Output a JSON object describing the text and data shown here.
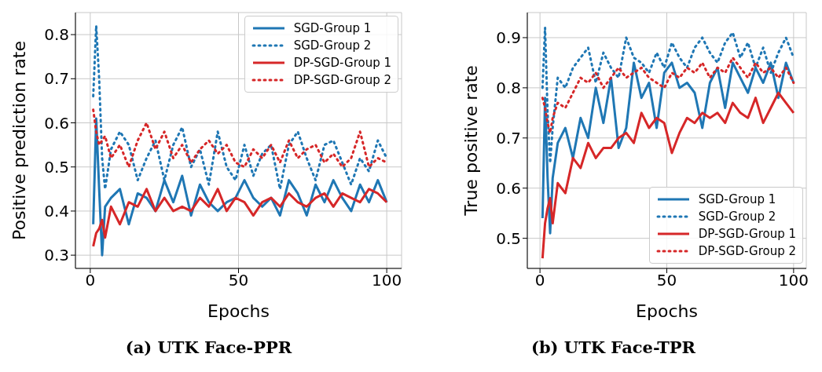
{
  "chart_data": [
    {
      "type": "line",
      "title": "(a) UTK Face-PPR",
      "xlabel": "Epochs",
      "ylabel": "Positive prediction rate",
      "xlim": [
        -5,
        105
      ],
      "xticks": [
        0,
        50,
        100
      ],
      "ylim": [
        0.27,
        0.85
      ],
      "yticks": [
        0.3,
        0.4,
        0.5,
        0.6,
        0.7,
        0.8
      ],
      "grid": true,
      "legend": "top right",
      "x": [
        1,
        2,
        3,
        4,
        5,
        7,
        10,
        13,
        16,
        19,
        22,
        25,
        28,
        31,
        34,
        37,
        40,
        43,
        46,
        49,
        52,
        55,
        58,
        61,
        64,
        67,
        70,
        73,
        76,
        79,
        82,
        85,
        88,
        91,
        94,
        97,
        100
      ],
      "series": [
        {
          "name": "SGD-Group 1",
          "color": "#1f77b4",
          "line_style": "solid",
          "values": [
            0.37,
            0.61,
            0.45,
            0.3,
            0.41,
            0.43,
            0.45,
            0.37,
            0.44,
            0.43,
            0.4,
            0.47,
            0.42,
            0.48,
            0.39,
            0.46,
            0.42,
            0.4,
            0.42,
            0.43,
            0.47,
            0.43,
            0.41,
            0.43,
            0.39,
            0.47,
            0.44,
            0.39,
            0.46,
            0.42,
            0.47,
            0.43,
            0.4,
            0.46,
            0.42,
            0.47,
            0.42
          ]
        },
        {
          "name": "SGD-Group 2",
          "color": "#1f77b4",
          "line_style": "dotted",
          "values": [
            0.66,
            0.82,
            0.7,
            0.52,
            0.45,
            0.54,
            0.58,
            0.55,
            0.47,
            0.52,
            0.56,
            0.47,
            0.55,
            0.59,
            0.5,
            0.54,
            0.46,
            0.58,
            0.5,
            0.47,
            0.55,
            0.48,
            0.53,
            0.55,
            0.45,
            0.55,
            0.58,
            0.52,
            0.47,
            0.55,
            0.56,
            0.51,
            0.46,
            0.52,
            0.49,
            0.56,
            0.52
          ]
        },
        {
          "name": "DP-SGD-Group 1",
          "color": "#d62728",
          "line_style": "solid",
          "values": [
            0.32,
            0.35,
            0.36,
            0.38,
            0.34,
            0.41,
            0.37,
            0.42,
            0.41,
            0.45,
            0.4,
            0.43,
            0.4,
            0.41,
            0.4,
            0.43,
            0.41,
            0.45,
            0.4,
            0.43,
            0.42,
            0.39,
            0.42,
            0.43,
            0.41,
            0.44,
            0.42,
            0.41,
            0.43,
            0.44,
            0.41,
            0.44,
            0.43,
            0.42,
            0.45,
            0.44,
            0.42
          ]
        },
        {
          "name": "DP-SGD-Group 2",
          "color": "#d62728",
          "line_style": "dotted",
          "values": [
            0.63,
            0.58,
            0.55,
            0.56,
            0.57,
            0.52,
            0.55,
            0.5,
            0.56,
            0.6,
            0.54,
            0.58,
            0.52,
            0.55,
            0.51,
            0.54,
            0.56,
            0.53,
            0.55,
            0.51,
            0.5,
            0.54,
            0.52,
            0.55,
            0.51,
            0.56,
            0.52,
            0.54,
            0.55,
            0.51,
            0.53,
            0.5,
            0.52,
            0.58,
            0.5,
            0.52,
            0.51
          ]
        }
      ]
    },
    {
      "type": "line",
      "title": "(b) UTK Face-TPR",
      "xlabel": "Epochs",
      "ylabel": "True positive rate",
      "xlim": [
        -5,
        105
      ],
      "xticks": [
        0,
        50,
        100
      ],
      "ylim": [
        0.44,
        0.95
      ],
      "yticks": [
        0.5,
        0.6,
        0.7,
        0.8,
        0.9
      ],
      "grid": true,
      "legend": "bottom right",
      "x": [
        1,
        2,
        3,
        4,
        5,
        7,
        10,
        13,
        16,
        19,
        22,
        25,
        28,
        31,
        34,
        37,
        40,
        43,
        46,
        49,
        52,
        55,
        58,
        61,
        64,
        67,
        70,
        73,
        76,
        79,
        82,
        85,
        88,
        91,
        94,
        97,
        100
      ],
      "series": [
        {
          "name": "SGD-Group 1",
          "color": "#1f77b4",
          "line_style": "solid",
          "values": [
            0.54,
            0.78,
            0.62,
            0.51,
            0.62,
            0.69,
            0.72,
            0.66,
            0.74,
            0.7,
            0.8,
            0.73,
            0.82,
            0.68,
            0.72,
            0.85,
            0.78,
            0.81,
            0.72,
            0.83,
            0.85,
            0.8,
            0.81,
            0.79,
            0.72,
            0.81,
            0.84,
            0.76,
            0.85,
            0.82,
            0.79,
            0.84,
            0.81,
            0.85,
            0.78,
            0.85,
            0.81
          ]
        },
        {
          "name": "SGD-Group 2",
          "color": "#1f77b4",
          "line_style": "dotted",
          "values": [
            0.8,
            0.92,
            0.75,
            0.65,
            0.72,
            0.82,
            0.8,
            0.84,
            0.86,
            0.88,
            0.81,
            0.87,
            0.84,
            0.82,
            0.9,
            0.86,
            0.85,
            0.83,
            0.87,
            0.84,
            0.89,
            0.86,
            0.84,
            0.88,
            0.9,
            0.87,
            0.85,
            0.89,
            0.91,
            0.86,
            0.89,
            0.84,
            0.88,
            0.83,
            0.87,
            0.9,
            0.86
          ]
        },
        {
          "name": "DP-SGD-Group 1",
          "color": "#d62728",
          "line_style": "solid",
          "values": [
            0.46,
            0.53,
            0.56,
            0.58,
            0.53,
            0.61,
            0.59,
            0.66,
            0.64,
            0.69,
            0.66,
            0.68,
            0.68,
            0.7,
            0.71,
            0.69,
            0.75,
            0.72,
            0.74,
            0.73,
            0.67,
            0.71,
            0.74,
            0.73,
            0.75,
            0.74,
            0.75,
            0.73,
            0.77,
            0.75,
            0.74,
            0.78,
            0.73,
            0.76,
            0.79,
            0.77,
            0.75
          ]
        },
        {
          "name": "DP-SGD-Group 2",
          "color": "#d62728",
          "line_style": "dotted",
          "values": [
            0.78,
            0.76,
            0.73,
            0.71,
            0.74,
            0.77,
            0.76,
            0.79,
            0.82,
            0.81,
            0.83,
            0.8,
            0.82,
            0.84,
            0.82,
            0.83,
            0.84,
            0.82,
            0.81,
            0.8,
            0.83,
            0.82,
            0.84,
            0.83,
            0.85,
            0.82,
            0.84,
            0.83,
            0.86,
            0.84,
            0.82,
            0.85,
            0.83,
            0.84,
            0.82,
            0.84,
            0.81
          ]
        }
      ]
    }
  ]
}
